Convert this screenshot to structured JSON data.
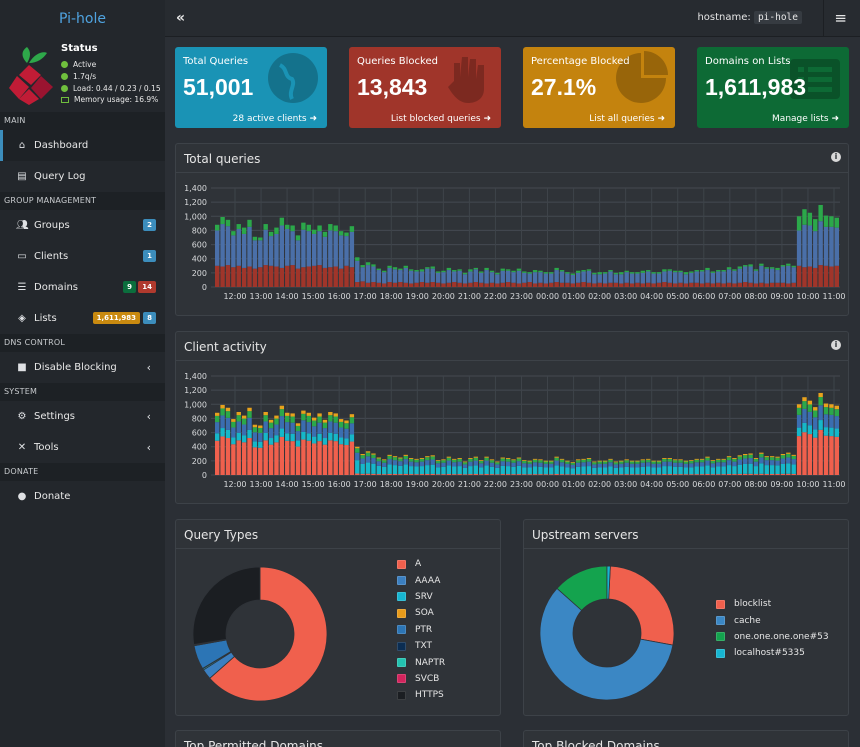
{
  "topbar": {
    "brand": "Pi-hole",
    "collapse_icon": "double-chevron-left",
    "hostname_label": "hostname:",
    "hostname_value": "pi-hole",
    "menu_icon": "hamburger"
  },
  "status": {
    "title": "Status",
    "active": "Active",
    "rate": "1.7q/s",
    "load": "Load: 0.44 / 0.23 / 0.15",
    "memory": "Memory usage: 16.9%"
  },
  "sidebar": {
    "sections": [
      {
        "header": "MAIN",
        "items": [
          {
            "label": "Dashboard",
            "icon": "home-icon",
            "active": true
          },
          {
            "label": "Query Log",
            "icon": "file-icon"
          }
        ]
      },
      {
        "header": "GROUP MANAGEMENT",
        "items": [
          {
            "label": "Groups",
            "icon": "users-icon",
            "badges": [
              "2"
            ]
          },
          {
            "label": "Clients",
            "icon": "laptop-icon",
            "badges": [
              "1"
            ]
          },
          {
            "label": "Domains",
            "icon": "list-icon",
            "badges": [
              "9",
              "14"
            ]
          },
          {
            "label": "Lists",
            "icon": "shield-icon",
            "badges": [
              "1,611,983",
              "8"
            ]
          }
        ]
      },
      {
        "header": "DNS CONTROL",
        "items": [
          {
            "label": "Disable Blocking",
            "icon": "stop-icon"
          }
        ]
      },
      {
        "header": "SYSTEM",
        "items": [
          {
            "label": "Settings",
            "icon": "gears-icon"
          },
          {
            "label": "Tools",
            "icon": "tools-icon"
          }
        ]
      },
      {
        "header": "DONATE",
        "items": [
          {
            "label": "Donate",
            "icon": "donate-icon"
          }
        ]
      }
    ]
  },
  "stats": [
    {
      "title": "Total Queries",
      "value": "51,001",
      "footer": "28 active clients",
      "color": "#1a93b5"
    },
    {
      "title": "Queries Blocked",
      "value": "13,843",
      "footer": "List blocked queries",
      "color": "#a0352a"
    },
    {
      "title": "Percentage Blocked",
      "value": "27.1%",
      "footer": "List all queries",
      "color": "#c4830e"
    },
    {
      "title": "Domains on Lists",
      "value": "1,611,983",
      "footer": "Manage lists",
      "color": "#0d6a35"
    }
  ],
  "panels": {
    "total_queries": "Total queries",
    "client_activity": "Client activity",
    "query_types": "Query Types",
    "upstream": "Upstream servers",
    "top_permitted": "Top Permitted Domains",
    "top_blocked": "Top Blocked Domains"
  },
  "chart_data": [
    {
      "type": "bar",
      "title": "Total queries",
      "stacked": true,
      "y_ticks": [
        "0",
        "200",
        "400",
        "600",
        "800",
        "1,000",
        "1,200",
        "1,400"
      ],
      "ylim": [
        0,
        1400
      ],
      "x_ticks": [
        "12:00",
        "13:00",
        "14:00",
        "15:00",
        "16:00",
        "17:00",
        "18:00",
        "19:00",
        "20:00",
        "21:00",
        "22:00",
        "23:00",
        "00:00",
        "01:00",
        "02:00",
        "03:00",
        "04:00",
        "05:00",
        "06:00",
        "07:00",
        "08:00",
        "09:00",
        "10:00",
        "11:00"
      ],
      "series": [
        {
          "color": "#a0352a"
        },
        {
          "color": "#4a6fa8"
        },
        {
          "color": "#2ba84a"
        }
      ],
      "blocked": [
        300,
        290,
        310,
        280,
        300,
        270,
        290,
        260,
        280,
        310,
        300,
        290,
        270,
        300,
        310,
        260,
        280,
        290,
        300,
        310,
        270,
        280,
        290,
        260,
        300,
        280,
        70,
        80,
        60,
        70,
        60,
        50,
        70,
        60,
        70,
        60,
        50,
        60,
        70,
        60,
        70,
        60,
        50,
        60,
        70,
        60,
        50,
        60,
        70,
        60,
        50,
        60,
        50,
        60,
        70,
        60,
        50,
        60,
        70,
        50,
        60,
        50,
        60,
        70,
        60,
        60,
        50,
        60,
        70,
        60,
        50,
        60,
        50,
        60,
        60,
        50,
        60,
        50,
        60,
        50,
        60,
        50,
        60,
        70,
        60,
        50,
        60,
        50,
        60,
        60,
        50,
        60,
        50,
        60,
        50,
        60,
        50,
        60,
        70,
        60,
        50,
        60,
        50,
        60,
        60,
        60,
        50,
        60,
        300,
        280,
        290,
        270,
        310,
        300,
        290,
        300
      ],
      "permitted": [
        500,
        600,
        550,
        450,
        520,
        480,
        560,
        400,
        380,
        500,
        420,
        460,
        600,
        520,
        480,
        400,
        530,
        500,
        450,
        480,
        440,
        520,
        500,
        470,
        420,
        500,
        300,
        200,
        250,
        220,
        180,
        160,
        200,
        190,
        170,
        210,
        180,
        160,
        150,
        200,
        190,
        140,
        160,
        180,
        150,
        170,
        130,
        160,
        180,
        140,
        190,
        150,
        130,
        170,
        160,
        150,
        180,
        140,
        120,
        160,
        150,
        140,
        130,
        170,
        160,
        130,
        120,
        140,
        150,
        170,
        130,
        120,
        140,
        160,
        120,
        130,
        150,
        140,
        130,
        150,
        160,
        140,
        130,
        150,
        170,
        160,
        150,
        130,
        140,
        160,
        170,
        180,
        150,
        160,
        170,
        190,
        180,
        200,
        220,
        230,
        180,
        240,
        210,
        200,
        180,
        230,
        250,
        220,
        500,
        600,
        580,
        520,
        620,
        550,
        560,
        540
      ],
      "other": [
        80,
        100,
        90,
        60,
        70,
        90,
        100,
        50,
        40,
        80,
        60,
        90,
        110,
        60,
        80,
        70,
        100,
        90,
        60,
        80,
        70,
        90,
        80,
        60,
        50,
        80,
        50,
        30,
        40,
        30,
        20,
        20,
        30,
        30,
        20,
        30,
        20,
        20,
        30,
        20,
        30,
        20,
        20,
        30,
        20,
        20,
        20,
        30,
        20,
        20,
        30,
        20,
        20,
        30,
        20,
        20,
        30,
        20,
        20,
        30,
        20,
        20,
        20,
        30,
        20,
        20,
        20,
        30,
        20,
        20,
        20,
        30,
        20,
        20,
        20,
        30,
        20,
        20,
        20,
        30,
        20,
        20,
        20,
        30,
        20,
        20,
        20,
        30,
        20,
        20,
        20,
        30,
        20,
        20,
        20,
        30,
        20,
        30,
        20,
        30,
        20,
        30,
        20,
        20,
        30,
        20,
        30,
        20,
        200,
        220,
        180,
        170,
        230,
        160,
        150,
        140
      ]
    },
    {
      "type": "bar",
      "title": "Client activity",
      "stacked": true,
      "y_ticks": [
        "0",
        "200",
        "400",
        "600",
        "800",
        "1,000",
        "1,200",
        "1,400"
      ],
      "ylim": [
        0,
        1400
      ],
      "x_ticks": [
        "12:00",
        "13:00",
        "14:00",
        "15:00",
        "16:00",
        "17:00",
        "18:00",
        "19:00",
        "20:00",
        "21:00",
        "22:00",
        "23:00",
        "00:00",
        "01:00",
        "02:00",
        "03:00",
        "04:00",
        "05:00",
        "06:00",
        "07:00",
        "08:00",
        "09:00",
        "10:00",
        "11:00"
      ],
      "series": [
        {
          "color": "#f0604d"
        },
        {
          "color": "#16b7c9"
        },
        {
          "color": "#3b6db0"
        },
        {
          "color": "#2ba84a"
        },
        {
          "color": "#e8a21c"
        }
      ]
    },
    {
      "type": "pie",
      "title": "Query Types",
      "donut": true,
      "labels": [
        "A",
        "AAAA",
        "SRV",
        "SOA",
        "PTR",
        "TXT",
        "NAPTR",
        "SVCB",
        "HTTPS"
      ],
      "values": [
        63.5,
        2.5,
        0.3,
        0.1,
        5.8,
        0.1,
        0.1,
        0.1,
        27.5
      ],
      "colors": [
        "#f0604d",
        "#3b7fc0",
        "#17b5d1",
        "#e89b1a",
        "#2c75b5",
        "#0b2d52",
        "#23c2b0",
        "#d3245d",
        "#1b1e22"
      ]
    },
    {
      "type": "pie",
      "title": "Upstream servers",
      "donut": true,
      "labels": [
        "blocklist",
        "cache",
        "one.one.one.one#53",
        "localhost#5335"
      ],
      "values": [
        27.1,
        58.7,
        13.4,
        0.8
      ],
      "colors": [
        "#f0604d",
        "#3b87c4",
        "#14a34e",
        "#17b5d1"
      ]
    }
  ]
}
